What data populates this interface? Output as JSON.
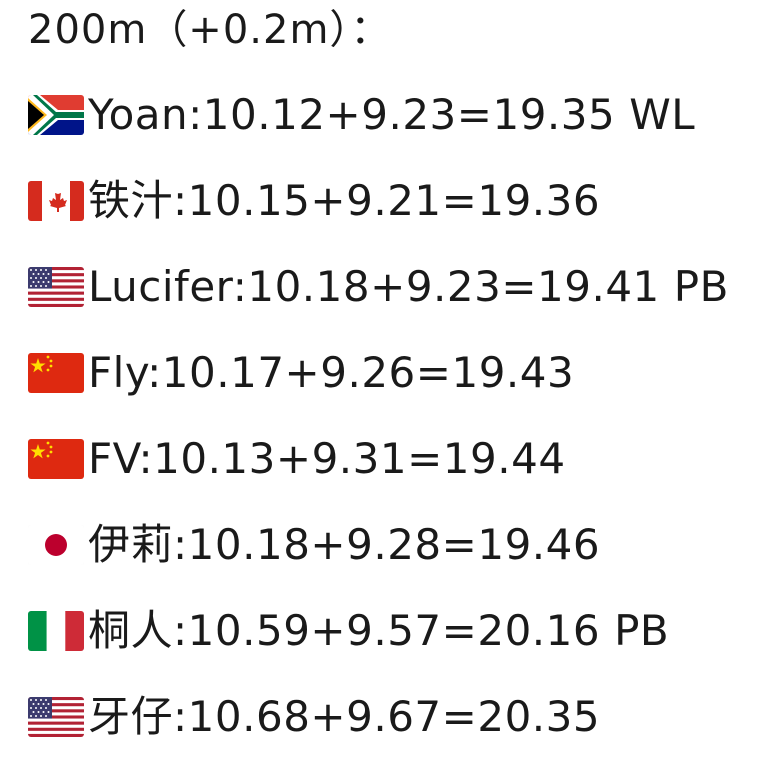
{
  "header": {
    "title": "200m（+0.2m）："
  },
  "results": [
    {
      "flag": "south-africa-flag-icon",
      "name": "Yoan",
      "first": "10.12",
      "second": "9.23",
      "total": "19.35",
      "mark": "WL"
    },
    {
      "flag": "canada-flag-icon",
      "name": "铁汁",
      "first": "10.15",
      "second": "9.21",
      "total": "19.36",
      "mark": ""
    },
    {
      "flag": "usa-flag-icon",
      "name": "Lucifer",
      "first": "10.18",
      "second": "9.23",
      "total": "19.41",
      "mark": "PB"
    },
    {
      "flag": "china-flag-icon",
      "name": "Fly",
      "first": "10.17",
      "second": "9.26",
      "total": "19.43",
      "mark": ""
    },
    {
      "flag": "china-flag-icon",
      "name": "FV",
      "first": "10.13",
      "second": "9.31",
      "total": "19.44",
      "mark": ""
    },
    {
      "flag": "japan-flag-icon",
      "name": "伊莉",
      "first": "10.18",
      "second": "9.28",
      "total": "19.46",
      "mark": ""
    },
    {
      "flag": "italy-flag-icon",
      "name": "桐人",
      "first": "10.59",
      "second": "9.57",
      "total": "20.16",
      "mark": "PB"
    },
    {
      "flag": "usa-flag-icon",
      "name": "牙仔",
      "first": "10.68",
      "second": "9.67",
      "total": "20.35",
      "mark": ""
    }
  ]
}
